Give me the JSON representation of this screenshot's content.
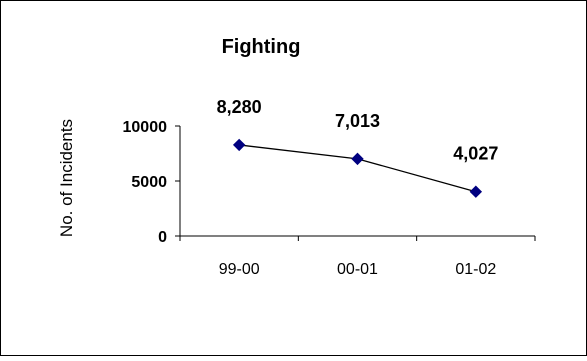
{
  "chart_data": {
    "type": "line",
    "title": "Fighting",
    "xlabel": "",
    "ylabel": "No. of Incidents",
    "categories": [
      "99-00",
      "00-01",
      "01-02"
    ],
    "series": [
      {
        "values": [
          8280,
          7013,
          4027
        ],
        "data_labels": [
          "8,280",
          "7,013",
          "4,027"
        ],
        "color": "#000080"
      }
    ],
    "yticks": [
      0,
      5000,
      10000
    ],
    "ytick_labels": [
      "0",
      "5000",
      "10000"
    ],
    "ylim": [
      0,
      10000
    ],
    "grid": false,
    "legend": "none",
    "line_color": "#000000",
    "marker_color": "#000080",
    "marker": "diamond"
  }
}
